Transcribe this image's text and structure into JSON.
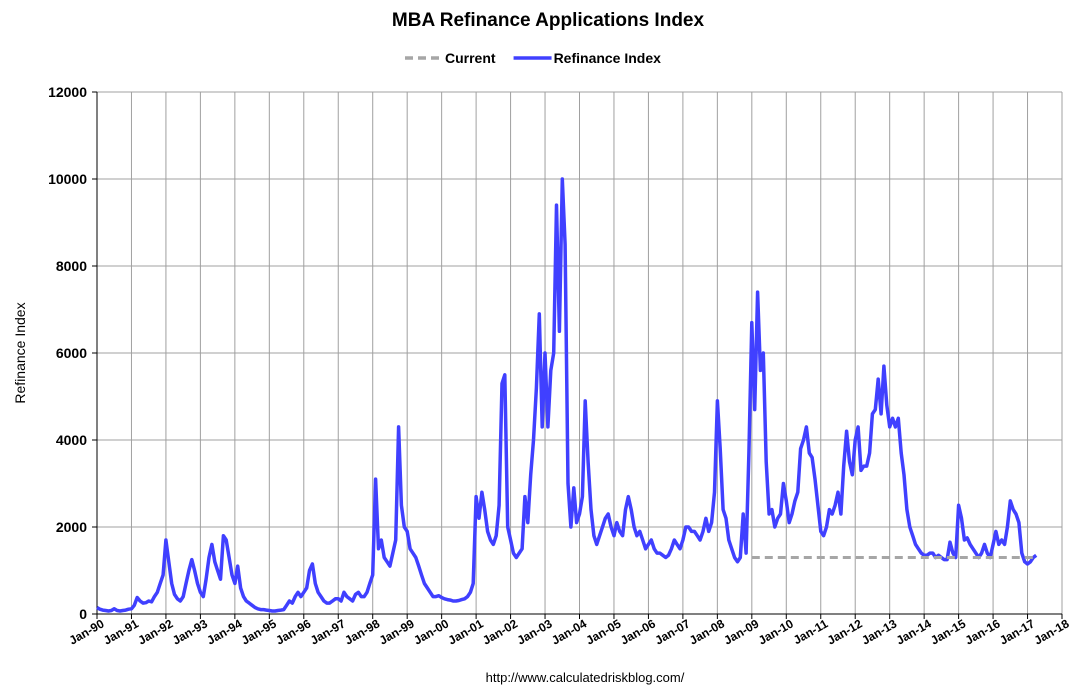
{
  "chart_data": {
    "type": "line",
    "title": "MBA Refinance Applications Index",
    "ylabel": "Refinance Index",
    "source": "http://www.calculatedriskblog.com/",
    "grid": true,
    "legend": "top",
    "xlim": [
      "1990-01",
      "2018-01"
    ],
    "xticks": [
      {
        "value": "1990-01",
        "label": "Jan-90"
      },
      {
        "value": "1991-01",
        "label": "Jan-91"
      },
      {
        "value": "1992-01",
        "label": "Jan-92"
      },
      {
        "value": "1993-01",
        "label": "Jan-93"
      },
      {
        "value": "1994-01",
        "label": "Jan-94"
      },
      {
        "value": "1995-01",
        "label": "Jan-95"
      },
      {
        "value": "1996-01",
        "label": "Jan-96"
      },
      {
        "value": "1997-01",
        "label": "Jan-97"
      },
      {
        "value": "1998-01",
        "label": "Jan-98"
      },
      {
        "value": "1999-01",
        "label": "Jan-99"
      },
      {
        "value": "2000-01",
        "label": "Jan-00"
      },
      {
        "value": "2001-01",
        "label": "Jan-01"
      },
      {
        "value": "2002-01",
        "label": "Jan-02"
      },
      {
        "value": "2003-01",
        "label": "Jan-03"
      },
      {
        "value": "2004-01",
        "label": "Jan-04"
      },
      {
        "value": "2005-01",
        "label": "Jan-05"
      },
      {
        "value": "2006-01",
        "label": "Jan-06"
      },
      {
        "value": "2007-01",
        "label": "Jan-07"
      },
      {
        "value": "2008-01",
        "label": "Jan-08"
      },
      {
        "value": "2009-01",
        "label": "Jan-09"
      },
      {
        "value": "2010-01",
        "label": "Jan-10"
      },
      {
        "value": "2011-01",
        "label": "Jan-11"
      },
      {
        "value": "2012-01",
        "label": "Jan-12"
      },
      {
        "value": "2013-01",
        "label": "Jan-13"
      },
      {
        "value": "2014-01",
        "label": "Jan-14"
      },
      {
        "value": "2015-01",
        "label": "Jan-15"
      },
      {
        "value": "2016-01",
        "label": "Jan-16"
      },
      {
        "value": "2017-01",
        "label": "Jan-17"
      },
      {
        "value": "2018-01",
        "label": "Jan-18"
      }
    ],
    "ylim": [
      0,
      12000
    ],
    "yticks": [
      0,
      2000,
      4000,
      6000,
      8000,
      10000,
      12000
    ],
    "series": [
      {
        "name": "Current",
        "color": "#a6a6a6",
        "dashed": true,
        "x": [
          "2009-01",
          "2017-04"
        ],
        "values": [
          1300,
          1300
        ]
      },
      {
        "name": "Refinance Index",
        "color": "#4040ff",
        "dashed": false,
        "x": [
          "1990-01",
          "1990-02",
          "1990-03",
          "1990-04",
          "1990-05",
          "1990-06",
          "1990-07",
          "1990-08",
          "1990-09",
          "1990-10",
          "1990-11",
          "1990-12",
          "1991-01",
          "1991-02",
          "1991-03",
          "1991-04",
          "1991-05",
          "1991-06",
          "1991-07",
          "1991-08",
          "1991-09",
          "1991-10",
          "1991-11",
          "1991-12",
          "1992-01",
          "1992-02",
          "1992-03",
          "1992-04",
          "1992-05",
          "1992-06",
          "1992-07",
          "1992-08",
          "1992-09",
          "1992-10",
          "1992-11",
          "1992-12",
          "1993-01",
          "1993-02",
          "1993-03",
          "1993-04",
          "1993-05",
          "1993-06",
          "1993-07",
          "1993-08",
          "1993-09",
          "1993-10",
          "1993-11",
          "1993-12",
          "1994-01",
          "1994-02",
          "1994-03",
          "1994-04",
          "1994-05",
          "1994-06",
          "1994-07",
          "1994-08",
          "1994-09",
          "1994-10",
          "1994-11",
          "1994-12",
          "1995-01",
          "1995-02",
          "1995-03",
          "1995-04",
          "1995-05",
          "1995-06",
          "1995-07",
          "1995-08",
          "1995-09",
          "1995-10",
          "1995-11",
          "1995-12",
          "1996-01",
          "1996-02",
          "1996-03",
          "1996-04",
          "1996-05",
          "1996-06",
          "1996-07",
          "1996-08",
          "1996-09",
          "1996-10",
          "1996-11",
          "1996-12",
          "1997-01",
          "1997-02",
          "1997-03",
          "1997-04",
          "1997-05",
          "1997-06",
          "1997-07",
          "1997-08",
          "1997-09",
          "1997-10",
          "1997-11",
          "1997-12",
          "1998-01",
          "1998-02",
          "1998-03",
          "1998-04",
          "1998-05",
          "1998-06",
          "1998-07",
          "1998-08",
          "1998-09",
          "1998-10",
          "1998-11",
          "1998-12",
          "1999-01",
          "1999-02",
          "1999-03",
          "1999-04",
          "1999-05",
          "1999-06",
          "1999-07",
          "1999-08",
          "1999-09",
          "1999-10",
          "1999-11",
          "1999-12",
          "2000-01",
          "2000-02",
          "2000-03",
          "2000-04",
          "2000-05",
          "2000-06",
          "2000-07",
          "2000-08",
          "2000-09",
          "2000-10",
          "2000-11",
          "2000-12",
          "2001-01",
          "2001-02",
          "2001-03",
          "2001-04",
          "2001-05",
          "2001-06",
          "2001-07",
          "2001-08",
          "2001-09",
          "2001-10",
          "2001-11",
          "2001-12",
          "2002-01",
          "2002-02",
          "2002-03",
          "2002-04",
          "2002-05",
          "2002-06",
          "2002-07",
          "2002-08",
          "2002-09",
          "2002-10",
          "2002-11",
          "2002-12",
          "2003-01",
          "2003-02",
          "2003-03",
          "2003-04",
          "2003-05",
          "2003-06",
          "2003-07",
          "2003-08",
          "2003-09",
          "2003-10",
          "2003-11",
          "2003-12",
          "2004-01",
          "2004-02",
          "2004-03",
          "2004-04",
          "2004-05",
          "2004-06",
          "2004-07",
          "2004-08",
          "2004-09",
          "2004-10",
          "2004-11",
          "2004-12",
          "2005-01",
          "2005-02",
          "2005-03",
          "2005-04",
          "2005-05",
          "2005-06",
          "2005-07",
          "2005-08",
          "2005-09",
          "2005-10",
          "2005-11",
          "2005-12",
          "2006-01",
          "2006-02",
          "2006-03",
          "2006-04",
          "2006-05",
          "2006-06",
          "2006-07",
          "2006-08",
          "2006-09",
          "2006-10",
          "2006-11",
          "2006-12",
          "2007-01",
          "2007-02",
          "2007-03",
          "2007-04",
          "2007-05",
          "2007-06",
          "2007-07",
          "2007-08",
          "2007-09",
          "2007-10",
          "2007-11",
          "2007-12",
          "2008-01",
          "2008-02",
          "2008-03",
          "2008-04",
          "2008-05",
          "2008-06",
          "2008-07",
          "2008-08",
          "2008-09",
          "2008-10",
          "2008-11",
          "2008-12",
          "2009-01",
          "2009-02",
          "2009-03",
          "2009-04",
          "2009-05",
          "2009-06",
          "2009-07",
          "2009-08",
          "2009-09",
          "2009-10",
          "2009-11",
          "2009-12",
          "2010-01",
          "2010-02",
          "2010-03",
          "2010-04",
          "2010-05",
          "2010-06",
          "2010-07",
          "2010-08",
          "2010-09",
          "2010-10",
          "2010-11",
          "2010-12",
          "2011-01",
          "2011-02",
          "2011-03",
          "2011-04",
          "2011-05",
          "2011-06",
          "2011-07",
          "2011-08",
          "2011-09",
          "2011-10",
          "2011-11",
          "2011-12",
          "2012-01",
          "2012-02",
          "2012-03",
          "2012-04",
          "2012-05",
          "2012-06",
          "2012-07",
          "2012-08",
          "2012-09",
          "2012-10",
          "2012-11",
          "2012-12",
          "2013-01",
          "2013-02",
          "2013-03",
          "2013-04",
          "2013-05",
          "2013-06",
          "2013-07",
          "2013-08",
          "2013-09",
          "2013-10",
          "2013-11",
          "2013-12",
          "2014-01",
          "2014-02",
          "2014-03",
          "2014-04",
          "2014-05",
          "2014-06",
          "2014-07",
          "2014-08",
          "2014-09",
          "2014-10",
          "2014-11",
          "2014-12",
          "2015-01",
          "2015-02",
          "2015-03",
          "2015-04",
          "2015-05",
          "2015-06",
          "2015-07",
          "2015-08",
          "2015-09",
          "2015-10",
          "2015-11",
          "2015-12",
          "2016-01",
          "2016-02",
          "2016-03",
          "2016-04",
          "2016-05",
          "2016-06",
          "2016-07",
          "2016-08",
          "2016-09",
          "2016-10",
          "2016-11",
          "2016-12",
          "2017-01",
          "2017-02",
          "2017-03",
          "2017-04"
        ],
        "values": [
          150,
          110,
          90,
          80,
          70,
          80,
          120,
          80,
          70,
          80,
          90,
          110,
          120,
          200,
          380,
          300,
          250,
          260,
          300,
          280,
          400,
          500,
          700,
          900,
          1700,
          1200,
          700,
          450,
          350,
          300,
          400,
          700,
          1000,
          1250,
          1000,
          700,
          500,
          400,
          800,
          1300,
          1600,
          1200,
          1000,
          800,
          1800,
          1700,
          1300,
          900,
          700,
          1100,
          600,
          400,
          300,
          250,
          200,
          150,
          120,
          100,
          100,
          90,
          80,
          70,
          70,
          80,
          90,
          100,
          200,
          300,
          250,
          400,
          500,
          400,
          500,
          600,
          1000,
          1150,
          700,
          500,
          400,
          300,
          250,
          250,
          300,
          350,
          350,
          300,
          500,
          400,
          350,
          300,
          450,
          500,
          400,
          400,
          500,
          700,
          900,
          3100,
          1500,
          1700,
          1300,
          1200,
          1100,
          1400,
          1700,
          4300,
          2500,
          2000,
          1900,
          1500,
          1400,
          1300,
          1100,
          900,
          700,
          600,
          500,
          400,
          400,
          420,
          380,
          350,
          330,
          320,
          300,
          300,
          310,
          330,
          350,
          400,
          500,
          700,
          2700,
          2200,
          2800,
          2400,
          1900,
          1700,
          1600,
          1800,
          2500,
          5300,
          5500,
          2000,
          1700,
          1400,
          1300,
          1400,
          1500,
          2700,
          2100,
          3200,
          4000,
          5200,
          6900,
          4300,
          6000,
          4300,
          5600,
          6000,
          9400,
          6500,
          10000,
          8500,
          3000,
          2000,
          2900,
          2100,
          2300,
          2700,
          4900,
          3500,
          2400,
          1800,
          1600,
          1800,
          2000,
          2200,
          2300,
          2000,
          1800,
          2100,
          1900,
          1800,
          2400,
          2700,
          2400,
          2000,
          1800,
          1900,
          1700,
          1500,
          1600,
          1700,
          1500,
          1400,
          1400,
          1350,
          1300,
          1350,
          1500,
          1700,
          1600,
          1500,
          1700,
          2000,
          2000,
          1900,
          1900,
          1800,
          1700,
          1900,
          2200,
          1900,
          2100,
          2800,
          4900,
          3800,
          2400,
          2200,
          1700,
          1500,
          1300,
          1200,
          1300,
          2300,
          1400,
          3700,
          6700,
          4700,
          7400,
          5600,
          6000,
          3500,
          2300,
          2400,
          2000,
          2200,
          2300,
          3000,
          2600,
          2100,
          2300,
          2600,
          2800,
          3800,
          4000,
          4300,
          3700,
          3600,
          3100,
          2500,
          1900,
          1800,
          2000,
          2400,
          2300,
          2500,
          2800,
          2300,
          3400,
          4200,
          3500,
          3200,
          4000,
          4300,
          3300,
          3400,
          3400,
          3700,
          4600,
          4700,
          5400,
          4600,
          5700,
          4800,
          4300,
          4500,
          4300,
          4500,
          3700,
          3200,
          2400,
          2000,
          1800,
          1600,
          1500,
          1400,
          1350,
          1350,
          1400,
          1400,
          1300,
          1350,
          1300,
          1250,
          1250,
          1650,
          1400,
          1300,
          2500,
          2200,
          1700,
          1750,
          1600,
          1500,
          1400,
          1300,
          1400,
          1600,
          1400,
          1300,
          1600,
          1900,
          1600,
          1700,
          1600,
          2000,
          2600,
          2400,
          2300,
          2100,
          1400,
          1200,
          1150,
          1200,
          1300,
          1350
        ]
      }
    ]
  }
}
